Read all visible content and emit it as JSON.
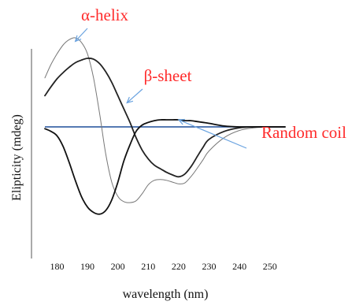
{
  "chart_data": {
    "type": "line",
    "title": "",
    "xlabel": "wavelength (nm)",
    "ylabel": "Elipticity (mdeg)",
    "xlim": [
      176,
      255
    ],
    "ylim": [
      -100,
      100
    ],
    "x_ticks": [
      180,
      190,
      200,
      210,
      220,
      230,
      240,
      250
    ],
    "grid": false,
    "baseline": {
      "y": 0,
      "color": "#1f4e9a"
    },
    "colors": {
      "annotation_text": "#ff2b2b",
      "arrow": "#6aa3e0",
      "baseline": "#1f4e9a"
    },
    "series": [
      {
        "name": "α-helix",
        "color": "#777777",
        "x": [
          176,
          178,
          180,
          182,
          184,
          186,
          188,
          190,
          192,
          194,
          196,
          198,
          200,
          202,
          204,
          206,
          208,
          210,
          212,
          214,
          216,
          218,
          220,
          222,
          224,
          226,
          228,
          230,
          235,
          240,
          245,
          250,
          255
        ],
        "y": [
          55,
          70,
          82,
          92,
          98,
          100,
          95,
          82,
          55,
          15,
          -30,
          -62,
          -78,
          -84,
          -85,
          -83,
          -75,
          -65,
          -60,
          -59,
          -60,
          -62,
          -64,
          -63,
          -56,
          -47,
          -37,
          -27,
          -12,
          -4,
          -1,
          0,
          0
        ]
      },
      {
        "name": "β-sheet",
        "color": "#222222",
        "x": [
          176,
          178,
          180,
          182,
          184,
          186,
          188,
          190,
          192,
          194,
          196,
          198,
          200,
          202,
          204,
          206,
          208,
          210,
          212,
          214,
          216,
          218,
          220,
          222,
          224,
          226,
          228,
          230,
          235,
          240,
          245,
          250,
          255
        ],
        "y": [
          35,
          45,
          54,
          61,
          67,
          72,
          75,
          77,
          76,
          71,
          62,
          50,
          35,
          20,
          5,
          -12,
          -26,
          -36,
          -43,
          -47,
          -51,
          -54,
          -56,
          -53,
          -45,
          -34,
          -23,
          -14,
          -5,
          -1,
          0,
          0,
          0
        ]
      },
      {
        "name": "Random coil",
        "color": "#111111",
        "x": [
          176,
          178,
          180,
          182,
          184,
          186,
          188,
          190,
          192,
          194,
          196,
          198,
          200,
          202,
          204,
          206,
          208,
          210,
          212,
          214,
          216,
          218,
          220,
          222,
          224,
          226,
          228,
          230,
          235,
          240,
          245,
          250,
          255
        ],
        "y": [
          -2,
          -5,
          -10,
          -22,
          -40,
          -60,
          -78,
          -90,
          -96,
          -98,
          -94,
          -82,
          -62,
          -38,
          -20,
          -5,
          2,
          5,
          7,
          8,
          8,
          8,
          8,
          7,
          7,
          6,
          5,
          4,
          1,
          0,
          0,
          0,
          0
        ]
      }
    ],
    "annotations": [
      {
        "text": "α-helix",
        "points_to_x": 186,
        "points_to_y": 96
      },
      {
        "text": "β-sheet",
        "points_to_x": 203,
        "points_to_y": 27
      },
      {
        "text": "Random coil",
        "points_to_x": 220,
        "points_to_y": 8
      }
    ]
  }
}
